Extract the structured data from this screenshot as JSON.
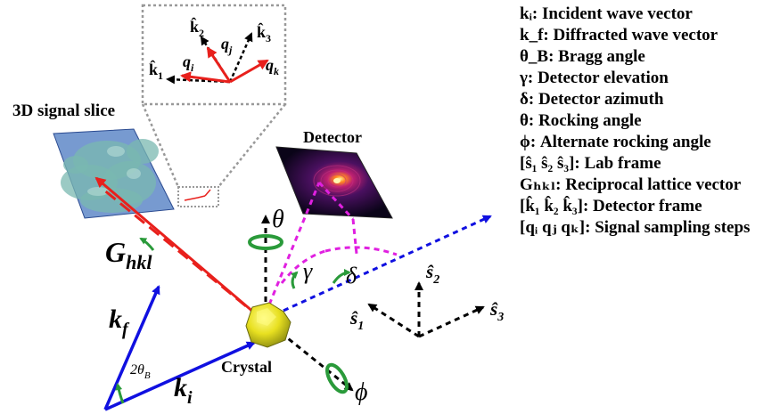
{
  "labels": {
    "signal_slice": "3D signal slice",
    "detector": "Detector",
    "crystal": "Crystal",
    "g_main": "G",
    "g_sub": "hkl",
    "kf_main": "k",
    "kf_sub": "f",
    "ki_main": "k",
    "ki_sub": "i",
    "two_theta_main": "2θ",
    "two_theta_sub": "B",
    "theta": "θ",
    "phi": "ϕ",
    "gamma": "γ",
    "delta": "δ",
    "s1_main": "ŝ",
    "s1_sub": "1",
    "s2_main": "ŝ",
    "s2_sub": "2",
    "s3_main": "ŝ",
    "s3_sub": "3",
    "inset_k1_main": "k̂",
    "inset_k1_sub": "1",
    "inset_k2_main": "k̂",
    "inset_k2_sub": "2",
    "inset_k3_main": "k̂",
    "inset_k3_sub": "3",
    "inset_qi_main": "q",
    "inset_qi_sub": "i",
    "inset_qj_main": "q",
    "inset_qj_sub": "j",
    "inset_qk_main": "q",
    "inset_qk_sub": "k"
  },
  "legend": [
    "kᵢ: Incident wave vector",
    "k_f: Diffracted wave vector",
    "θ_B: Bragg angle",
    "γ: Detector elevation",
    "δ: Detector azimuth",
    "θ: Rocking angle",
    "ϕ: Alternate rocking angle",
    "[ŝ₁ ŝ₂ ŝ₃]: Lab frame",
    "Gₕₖₗ: Reciprocal lattice vector",
    "[k̂₁ k̂₂ k̂₃]: Detector frame",
    "[qᵢ qⱼ qₖ]: Signal sampling steps"
  ],
  "colors": {
    "blue": "#1010e0",
    "red": "#e8201c",
    "magenta": "#e020e0",
    "green": "#2a9a3a",
    "crystal": "#e8e020",
    "slice": "#4a78c0"
  }
}
